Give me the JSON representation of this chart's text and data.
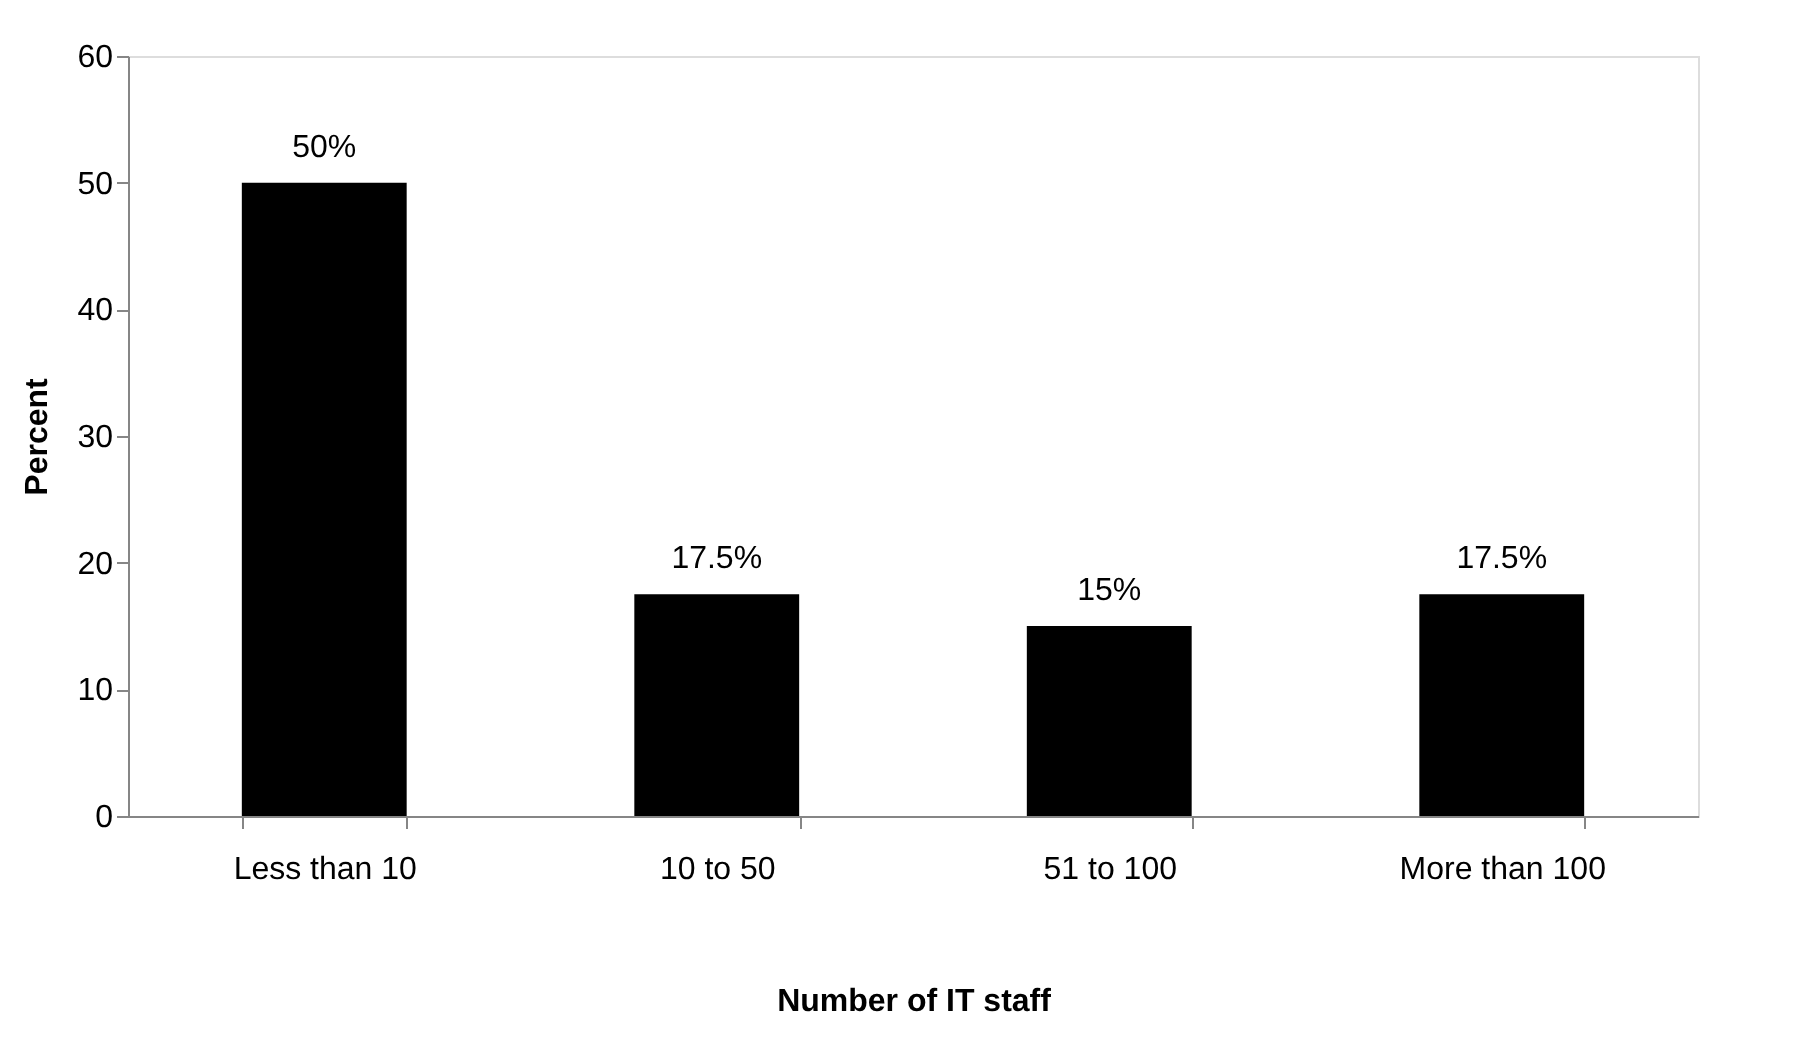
{
  "chart_data": {
    "type": "bar",
    "xlabel": "Number of IT staff",
    "ylabel": "Percent",
    "categories": [
      "Less than 10",
      "10 to 50",
      "51 to 100",
      "More than 100"
    ],
    "values": [
      50,
      17.5,
      15,
      17.5
    ],
    "value_labels": [
      "50%",
      "17.5%",
      "15%",
      "17.5%"
    ],
    "color": "#000000",
    "ylim": [
      0,
      60
    ],
    "yticks": [
      0,
      10,
      20,
      30,
      40,
      50,
      60
    ],
    "grid": false
  }
}
